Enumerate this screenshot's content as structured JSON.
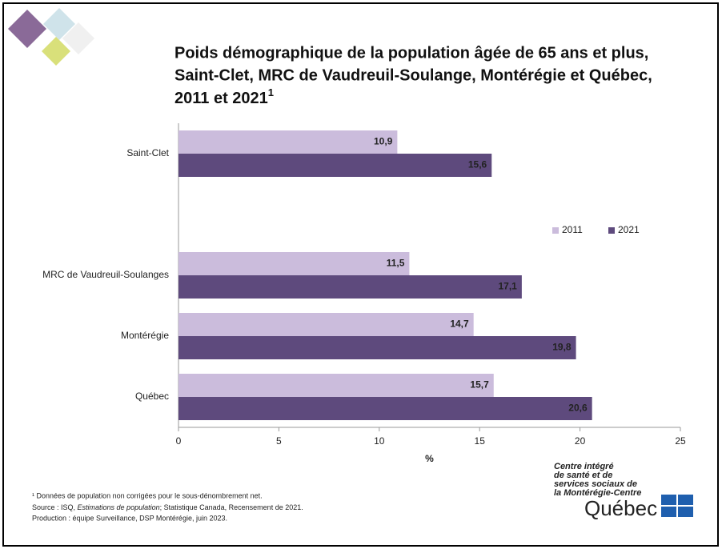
{
  "chart_data": {
    "type": "bar",
    "orientation": "horizontal",
    "title": [
      "Poids démographique de la population âgée de 65 ans et plus,",
      "Saint-Clet, MRC de Vaudreuil-Soulange, Montérégie et Québec,",
      "2011 et 2021"
    ],
    "title_superscript": "1",
    "categories": [
      "Saint-Clet",
      null,
      "MRC de Vaudreuil-Soulanges",
      "Montérégie",
      "Québec"
    ],
    "series": [
      {
        "name": "2011",
        "color": "#cbbcdc",
        "label_color": "#333333",
        "values": [
          10.9,
          null,
          11.5,
          14.7,
          15.7
        ],
        "value_labels": [
          "10,9",
          null,
          "11,5",
          "14,7",
          "15,7"
        ]
      },
      {
        "name": "2021",
        "color": "#5e4a7d",
        "label_color": "#ffffff",
        "values": [
          15.6,
          null,
          17.1,
          19.8,
          20.6
        ],
        "value_labels": [
          "15,6",
          null,
          "17,1",
          "19,8",
          "20,6"
        ]
      }
    ],
    "xlim": [
      0,
      25
    ],
    "xticks": [
      0,
      5,
      10,
      15,
      20,
      25
    ],
    "xlabel": "%",
    "legend": "right",
    "grid": false
  },
  "footnotes": {
    "note": "¹ Données de population non corrigées pour le sous-dénombrement net.",
    "source": [
      "Source : ISQ, ",
      "Estimations de population",
      "; Statistique Canada, Recensement de 2021."
    ],
    "production": "Production : équipe Surveillance, DSP Montérégie, juin 2023."
  },
  "logo": {
    "lines": [
      "Centre intégré",
      "de santé et de",
      "services sociaux de",
      "la Montérégie-Centre"
    ],
    "name": "Québec"
  }
}
